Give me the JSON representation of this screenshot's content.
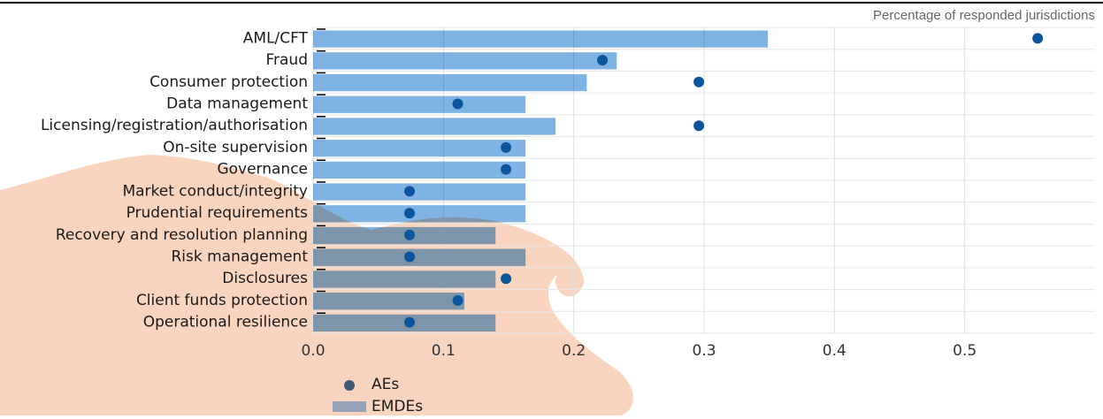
{
  "chart_data": {
    "type": "bar_dot",
    "x_label": "Percentage of responded jurisdictions",
    "categories": [
      "AML/CFT",
      "Fraud",
      "Consumer protection",
      "Data management",
      "Licensing/registration/authorisation",
      "On-site supervision",
      "Governance",
      "Market conduct/integrity",
      "Prudential requirements",
      "Recovery and resolution planning",
      "Risk management",
      "Disclosures",
      "Client funds protection",
      "Operational resilience"
    ],
    "series": [
      {
        "name": "EMDEs",
        "kind": "bar",
        "color": "#7fb3e4",
        "values": [
          0.349,
          0.233,
          0.21,
          0.163,
          0.186,
          0.163,
          0.163,
          0.163,
          0.163,
          0.14,
          0.163,
          0.14,
          0.116,
          0.14
        ]
      },
      {
        "name": "AEs",
        "kind": "dot",
        "color": "#0b559c",
        "values": [
          0.556,
          0.222,
          0.296,
          0.111,
          0.296,
          0.148,
          0.148,
          0.074,
          0.074,
          0.074,
          0.074,
          0.148,
          0.111,
          0.074
        ]
      }
    ],
    "xlim": [
      0,
      0.6
    ],
    "xticks": [
      {
        "value": 0,
        "label": "0.0"
      },
      0.1,
      0.2,
      0.3,
      0.4,
      0.5
    ],
    "grid": true
  }
}
